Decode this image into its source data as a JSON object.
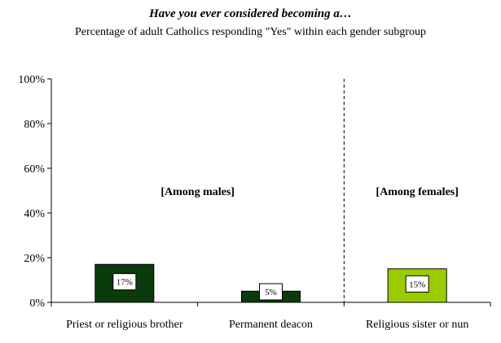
{
  "chart_data": {
    "type": "bar",
    "title": "Have you ever considered becoming a…",
    "subtitle": "Percentage of adult Catholics responding \"Yes\" within each gender subgroup",
    "categories": [
      "Priest or religious brother",
      "Permanent deacon",
      "Religious sister or nun"
    ],
    "values": [
      17,
      5,
      15
    ],
    "data_labels": [
      "17%",
      "5%",
      "15%"
    ],
    "bar_colors": [
      "#0b3a0b",
      "#0b3a0b",
      "#99cc00"
    ],
    "ylim": [
      0,
      100
    ],
    "yticks": [
      "0%",
      "20%",
      "40%",
      "60%",
      "80%",
      "100%"
    ],
    "yticks_values": [
      0,
      20,
      40,
      60,
      80,
      100
    ],
    "grid": false,
    "legend": "none",
    "annotations": [
      "[Among males]",
      "[Among females]"
    ],
    "divider_after_category": 1
  }
}
